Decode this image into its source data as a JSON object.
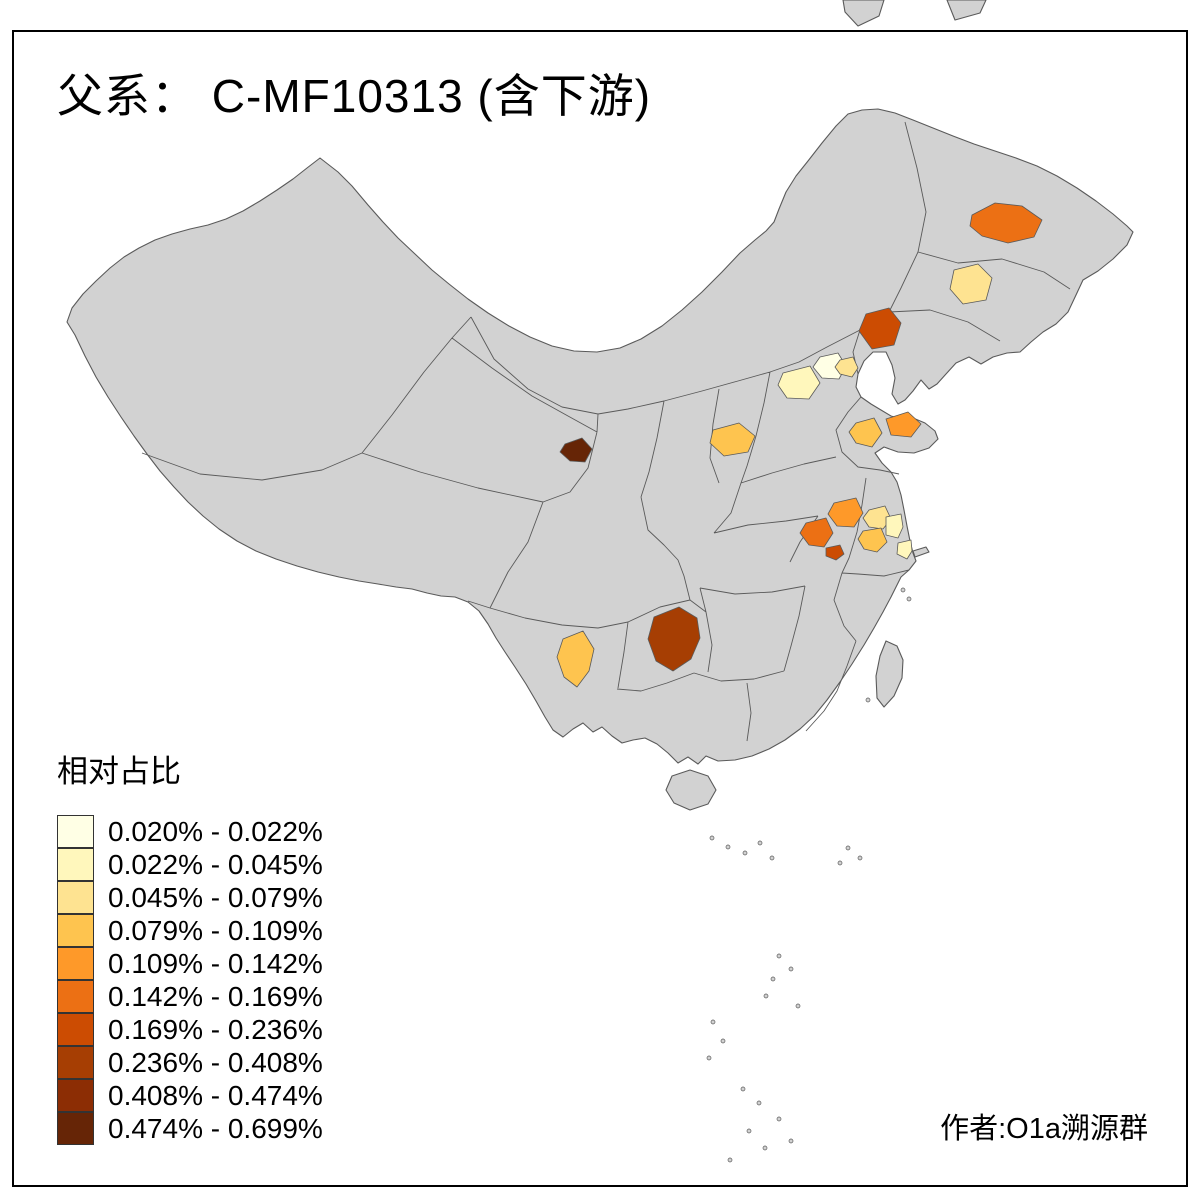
{
  "title": "父系： C-MF10313 (含下游)",
  "attribution": "作者:O1a溯源群",
  "legend": {
    "title": "相对占比",
    "classes": [
      {
        "label": "0.020% - 0.022%",
        "color": "#FFFFE5"
      },
      {
        "label": "0.022% - 0.045%",
        "color": "#FFF7BC"
      },
      {
        "label": "0.045% - 0.079%",
        "color": "#FEE391"
      },
      {
        "label": "0.079% - 0.109%",
        "color": "#FEC44F"
      },
      {
        "label": "0.109% - 0.142%",
        "color": "#FE9929"
      },
      {
        "label": "0.142% - 0.169%",
        "color": "#EC7014"
      },
      {
        "label": "0.169% - 0.236%",
        "color": "#CC4C02"
      },
      {
        "label": "0.236% - 0.408%",
        "color": "#A63E03"
      },
      {
        "label": "0.408% - 0.474%",
        "color": "#8C2D04"
      },
      {
        "label": "0.474% - 0.699%",
        "color": "#662506"
      }
    ]
  },
  "map": {
    "land_color": "#D2D2D2",
    "border_color": "#5A5A5A",
    "sea_color": "#FFFFFF",
    "frame_color": "#000000",
    "regions": [
      {
        "id": "heilongjiang-west",
        "class": 6
      },
      {
        "id": "heilongjiang-south",
        "class": 3
      },
      {
        "id": "liaoning-west",
        "class": 7
      },
      {
        "id": "beijing",
        "class": 1
      },
      {
        "id": "hebei-central",
        "class": 2
      },
      {
        "id": "tangshan-area",
        "class": 3
      },
      {
        "id": "henan-north",
        "class": 4
      },
      {
        "id": "shandong-west",
        "class": 4
      },
      {
        "id": "shandong-peninsula",
        "class": 5
      },
      {
        "id": "qinghai-east",
        "class": 10
      },
      {
        "id": "anhui-central",
        "class": 5
      },
      {
        "id": "anhui-west",
        "class": 6
      },
      {
        "id": "anhui-south",
        "class": 7
      },
      {
        "id": "jiangsu-central",
        "class": 3
      },
      {
        "id": "jiangsu-east",
        "class": 2
      },
      {
        "id": "jiangsu-south",
        "class": 4
      },
      {
        "id": "shanghai-area",
        "class": 2
      },
      {
        "id": "guizhou-north",
        "class": 8
      },
      {
        "id": "yunnan-central",
        "class": 4
      }
    ]
  },
  "chart_data": {
    "type": "choropleth",
    "title": "父系： C-MF10313 (含下游)",
    "legend_title": "相对占比",
    "bins": [
      "0.020% - 0.022%",
      "0.022% - 0.045%",
      "0.045% - 0.079%",
      "0.079% - 0.109%",
      "0.109% - 0.142%",
      "0.142% - 0.169%",
      "0.169% - 0.236%",
      "0.236% - 0.408%",
      "0.408% - 0.474%",
      "0.474% - 0.699%"
    ],
    "palette": [
      "#FFFFE5",
      "#FFF7BC",
      "#FEE391",
      "#FEC44F",
      "#FE9929",
      "#EC7014",
      "#CC4C02",
      "#A63E03",
      "#8C2D04",
      "#662506"
    ],
    "observations": [
      {
        "area": "heilongjiang-west",
        "bin": "0.142% - 0.169%"
      },
      {
        "area": "heilongjiang-south",
        "bin": "0.045% - 0.079%"
      },
      {
        "area": "liaoning-west",
        "bin": "0.169% - 0.236%"
      },
      {
        "area": "beijing",
        "bin": "0.020% - 0.022%"
      },
      {
        "area": "hebei-central",
        "bin": "0.022% - 0.045%"
      },
      {
        "area": "tangshan-area",
        "bin": "0.045% - 0.079%"
      },
      {
        "area": "henan-north",
        "bin": "0.079% - 0.109%"
      },
      {
        "area": "shandong-west",
        "bin": "0.079% - 0.109%"
      },
      {
        "area": "shandong-peninsula",
        "bin": "0.109% - 0.142%"
      },
      {
        "area": "qinghai-east",
        "bin": "0.474% - 0.699%"
      },
      {
        "area": "anhui-central",
        "bin": "0.109% - 0.142%"
      },
      {
        "area": "anhui-west",
        "bin": "0.142% - 0.169%"
      },
      {
        "area": "anhui-south",
        "bin": "0.169% - 0.236%"
      },
      {
        "area": "jiangsu-central",
        "bin": "0.045% - 0.079%"
      },
      {
        "area": "jiangsu-east",
        "bin": "0.022% - 0.045%"
      },
      {
        "area": "jiangsu-south",
        "bin": "0.079% - 0.109%"
      },
      {
        "area": "shanghai-area",
        "bin": "0.022% - 0.045%"
      },
      {
        "area": "guizhou-north",
        "bin": "0.236% - 0.408%"
      },
      {
        "area": "yunnan-central",
        "bin": "0.079% - 0.109%"
      }
    ]
  }
}
